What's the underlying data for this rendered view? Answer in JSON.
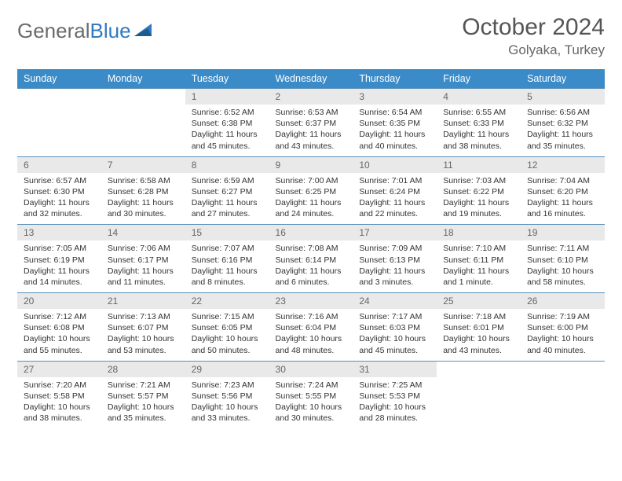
{
  "logo": {
    "part1": "General",
    "part2": "Blue"
  },
  "title": "October 2024",
  "subtitle": "Golyaka, Turkey",
  "day_headers": [
    "Sunday",
    "Monday",
    "Tuesday",
    "Wednesday",
    "Thursday",
    "Friday",
    "Saturday"
  ],
  "colors": {
    "header_bg": "#3b8bc8",
    "daynum_bg": "#e9e9e9",
    "row_border": "#5a8fb8",
    "logo_gray": "#6b6b6b",
    "logo_blue": "#2f7ac0"
  },
  "weeks": [
    [
      null,
      null,
      {
        "n": "1",
        "sr": "6:52 AM",
        "ss": "6:38 PM",
        "dl": "11 hours and 45 minutes."
      },
      {
        "n": "2",
        "sr": "6:53 AM",
        "ss": "6:37 PM",
        "dl": "11 hours and 43 minutes."
      },
      {
        "n": "3",
        "sr": "6:54 AM",
        "ss": "6:35 PM",
        "dl": "11 hours and 40 minutes."
      },
      {
        "n": "4",
        "sr": "6:55 AM",
        "ss": "6:33 PM",
        "dl": "11 hours and 38 minutes."
      },
      {
        "n": "5",
        "sr": "6:56 AM",
        "ss": "6:32 PM",
        "dl": "11 hours and 35 minutes."
      }
    ],
    [
      {
        "n": "6",
        "sr": "6:57 AM",
        "ss": "6:30 PM",
        "dl": "11 hours and 32 minutes."
      },
      {
        "n": "7",
        "sr": "6:58 AM",
        "ss": "6:28 PM",
        "dl": "11 hours and 30 minutes."
      },
      {
        "n": "8",
        "sr": "6:59 AM",
        "ss": "6:27 PM",
        "dl": "11 hours and 27 minutes."
      },
      {
        "n": "9",
        "sr": "7:00 AM",
        "ss": "6:25 PM",
        "dl": "11 hours and 24 minutes."
      },
      {
        "n": "10",
        "sr": "7:01 AM",
        "ss": "6:24 PM",
        "dl": "11 hours and 22 minutes."
      },
      {
        "n": "11",
        "sr": "7:03 AM",
        "ss": "6:22 PM",
        "dl": "11 hours and 19 minutes."
      },
      {
        "n": "12",
        "sr": "7:04 AM",
        "ss": "6:20 PM",
        "dl": "11 hours and 16 minutes."
      }
    ],
    [
      {
        "n": "13",
        "sr": "7:05 AM",
        "ss": "6:19 PM",
        "dl": "11 hours and 14 minutes."
      },
      {
        "n": "14",
        "sr": "7:06 AM",
        "ss": "6:17 PM",
        "dl": "11 hours and 11 minutes."
      },
      {
        "n": "15",
        "sr": "7:07 AM",
        "ss": "6:16 PM",
        "dl": "11 hours and 8 minutes."
      },
      {
        "n": "16",
        "sr": "7:08 AM",
        "ss": "6:14 PM",
        "dl": "11 hours and 6 minutes."
      },
      {
        "n": "17",
        "sr": "7:09 AM",
        "ss": "6:13 PM",
        "dl": "11 hours and 3 minutes."
      },
      {
        "n": "18",
        "sr": "7:10 AM",
        "ss": "6:11 PM",
        "dl": "11 hours and 1 minute."
      },
      {
        "n": "19",
        "sr": "7:11 AM",
        "ss": "6:10 PM",
        "dl": "10 hours and 58 minutes."
      }
    ],
    [
      {
        "n": "20",
        "sr": "7:12 AM",
        "ss": "6:08 PM",
        "dl": "10 hours and 55 minutes."
      },
      {
        "n": "21",
        "sr": "7:13 AM",
        "ss": "6:07 PM",
        "dl": "10 hours and 53 minutes."
      },
      {
        "n": "22",
        "sr": "7:15 AM",
        "ss": "6:05 PM",
        "dl": "10 hours and 50 minutes."
      },
      {
        "n": "23",
        "sr": "7:16 AM",
        "ss": "6:04 PM",
        "dl": "10 hours and 48 minutes."
      },
      {
        "n": "24",
        "sr": "7:17 AM",
        "ss": "6:03 PM",
        "dl": "10 hours and 45 minutes."
      },
      {
        "n": "25",
        "sr": "7:18 AM",
        "ss": "6:01 PM",
        "dl": "10 hours and 43 minutes."
      },
      {
        "n": "26",
        "sr": "7:19 AM",
        "ss": "6:00 PM",
        "dl": "10 hours and 40 minutes."
      }
    ],
    [
      {
        "n": "27",
        "sr": "7:20 AM",
        "ss": "5:58 PM",
        "dl": "10 hours and 38 minutes."
      },
      {
        "n": "28",
        "sr": "7:21 AM",
        "ss": "5:57 PM",
        "dl": "10 hours and 35 minutes."
      },
      {
        "n": "29",
        "sr": "7:23 AM",
        "ss": "5:56 PM",
        "dl": "10 hours and 33 minutes."
      },
      {
        "n": "30",
        "sr": "7:24 AM",
        "ss": "5:55 PM",
        "dl": "10 hours and 30 minutes."
      },
      {
        "n": "31",
        "sr": "7:25 AM",
        "ss": "5:53 PM",
        "dl": "10 hours and 28 minutes."
      },
      null,
      null
    ]
  ],
  "labels": {
    "sunrise": "Sunrise: ",
    "sunset": "Sunset: ",
    "daylight": "Daylight: "
  }
}
